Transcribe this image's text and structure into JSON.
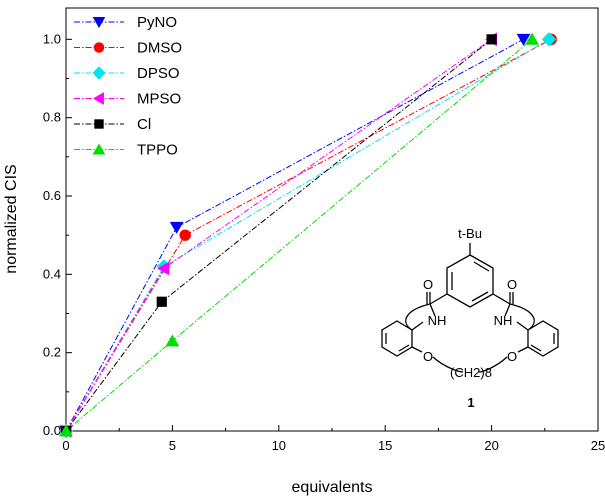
{
  "chart_data": {
    "type": "line",
    "xlabel": "equivalents",
    "ylabel": "normalized CIS",
    "xlim": [
      0,
      25
    ],
    "ylim": [
      0,
      1.08
    ],
    "xticks": [
      0,
      5,
      10,
      15,
      20,
      25
    ],
    "yticks": [
      0.0,
      0.2,
      0.4,
      0.6,
      0.8,
      1.0
    ],
    "x_tick_labels": [
      "0",
      "5",
      "10",
      "15",
      "20",
      "25"
    ],
    "y_tick_labels": [
      "0.0",
      "0.2",
      "0.4",
      "0.6",
      "0.8",
      "1.0"
    ],
    "legend_position": "top-left",
    "series": [
      {
        "name": "PyNO",
        "color": "#0000ff",
        "marker": "triangle-down",
        "x": [
          0,
          5.2,
          21.5
        ],
        "y": [
          0,
          0.52,
          1.0
        ]
      },
      {
        "name": "DMSO",
        "color": "#ff0000",
        "marker": "circle",
        "x": [
          0,
          5.6,
          22.8
        ],
        "y": [
          0,
          0.5,
          1.0
        ]
      },
      {
        "name": "DPSO",
        "color": "#00e5ee",
        "marker": "diamond",
        "x": [
          0,
          4.6,
          22.7
        ],
        "y": [
          0,
          0.42,
          1.0
        ]
      },
      {
        "name": "MPSO",
        "color": "#ff00ff",
        "marker": "triangle-left",
        "x": [
          0,
          4.6,
          20.0
        ],
        "y": [
          0,
          0.415,
          1.0
        ]
      },
      {
        "name": "Cl",
        "color": "#000000",
        "marker": "square",
        "x": [
          0,
          4.5,
          20.0
        ],
        "y": [
          0,
          0.33,
          1.0
        ]
      },
      {
        "name": "TPPO",
        "color": "#00dd00",
        "marker": "triangle-up",
        "x": [
          0,
          5.0,
          21.9
        ],
        "y": [
          0,
          0.23,
          1.0
        ]
      }
    ],
    "inset_molecule": {
      "substituent": "t-Bu",
      "carbonyl_left": "O",
      "carbonyl_right": "O",
      "amide_left": "NH",
      "amide_right": "NH",
      "ether_left": "O",
      "ether_right": "O",
      "linker": "(CH2)8",
      "compound_label": "1"
    }
  }
}
